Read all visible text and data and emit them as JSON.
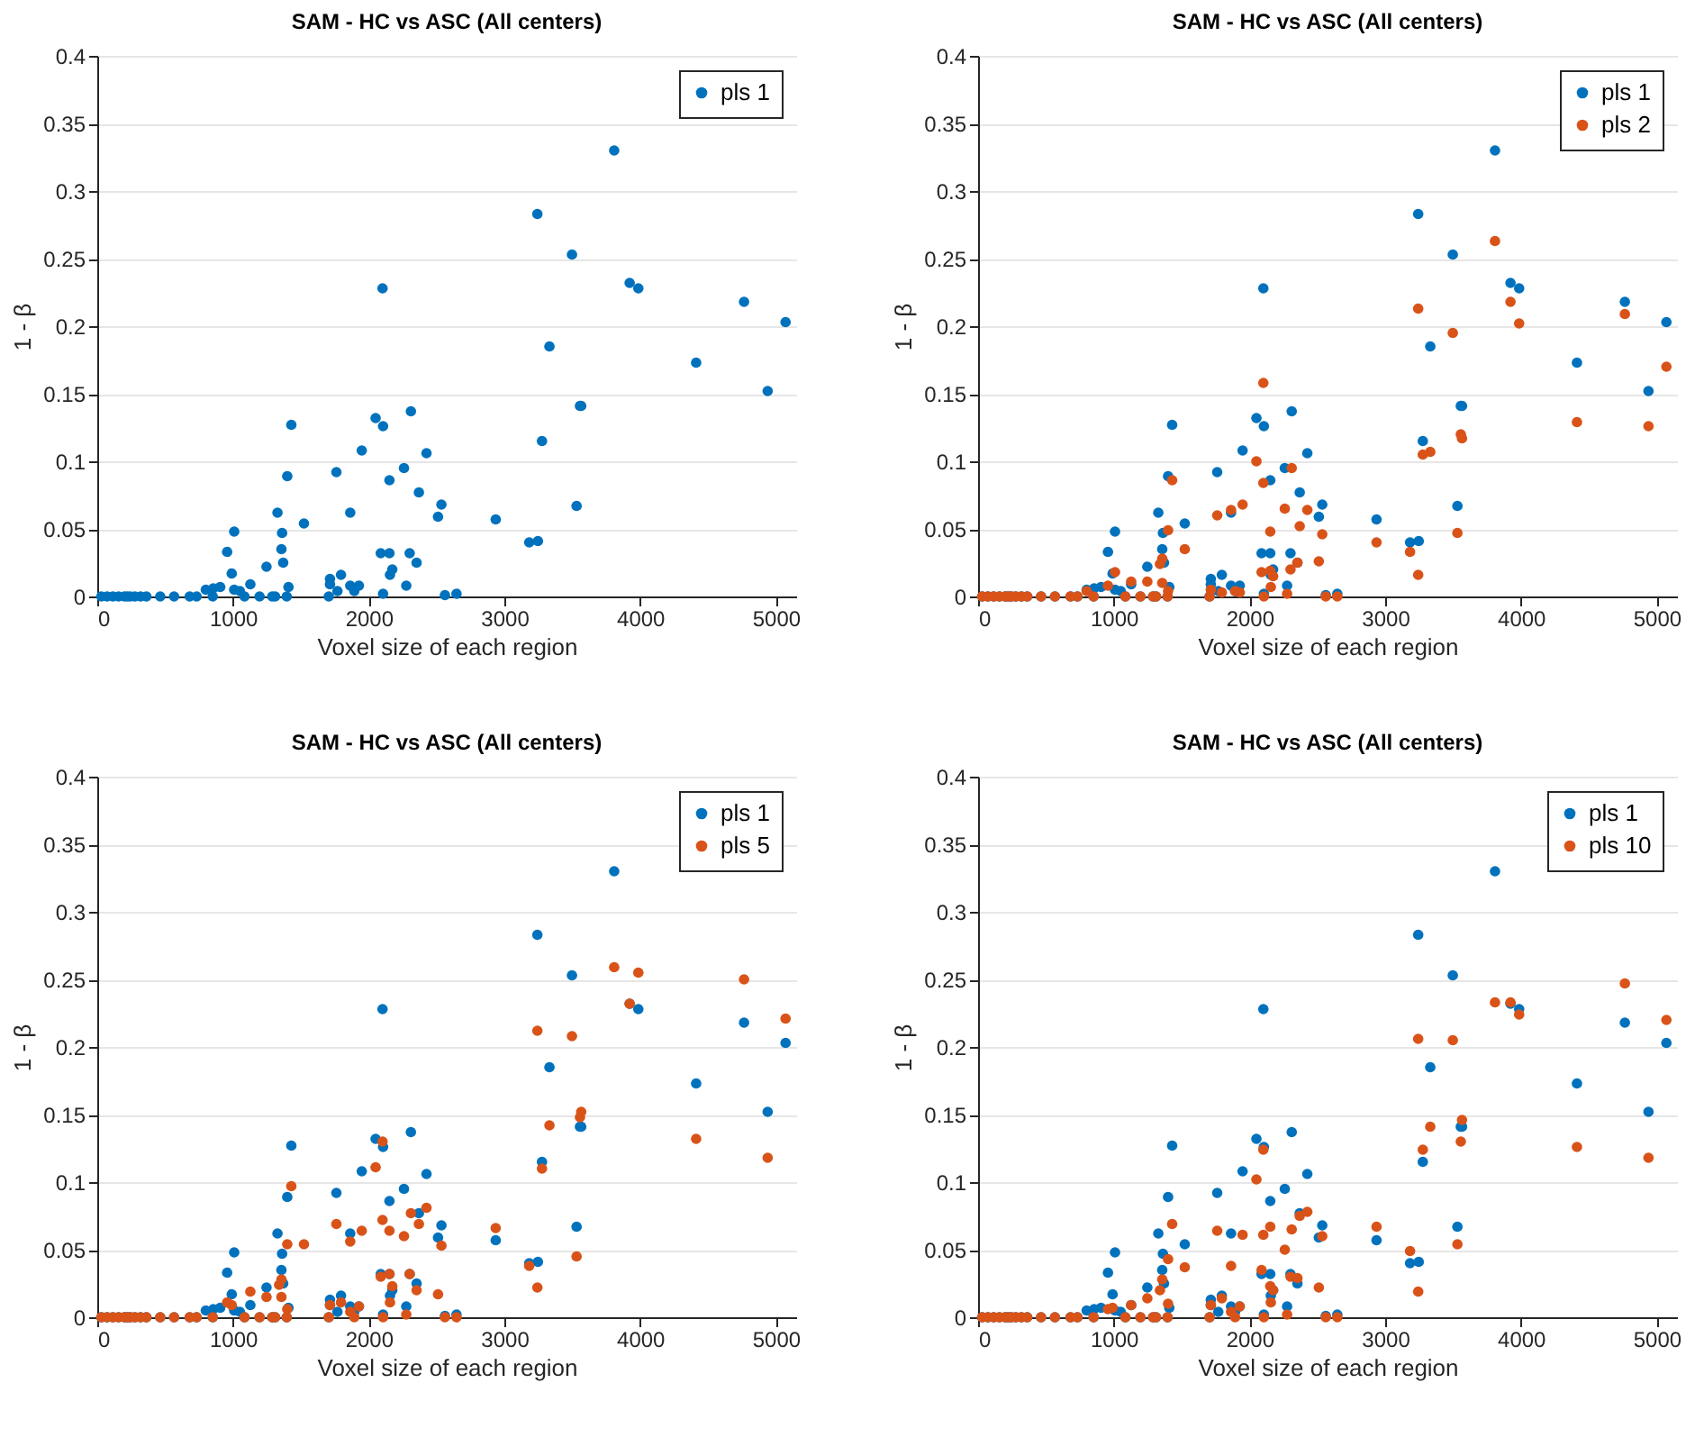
{
  "chart_data": [
    {
      "type": "scatter",
      "title": "SAM - HC vs ASC (All centers)",
      "xlabel": "Voxel size of each region",
      "ylabel": "1 - β",
      "xlim": [
        0,
        5150
      ],
      "ylim": [
        0,
        0.4
      ],
      "xticks": [
        0,
        1000,
        2000,
        3000,
        4000,
        5000
      ],
      "yticks": [
        0,
        0.05,
        0.1,
        0.15,
        0.2,
        0.25,
        0.3,
        0.35,
        0.4
      ],
      "grid": "y",
      "legend": "top right",
      "marker": "circle",
      "series": [
        {
          "name": "pls 1",
          "color": "#0072bd",
          "x": [
            3809,
            3243,
            3498,
            3923,
            3987,
            2102,
            4766,
            5072,
            3332,
            4413,
            4940,
            3557,
            3566,
            1430,
            2311,
            2051,
            2106,
            1949,
            2426,
            3277,
            1400,
            1762,
            2260,
            2153,
            2370,
            1328,
            1864,
            2536,
            2511,
            3532,
            2936,
            1009,
            1523,
            1362,
            3183,
            3247,
            957,
            1357,
            1370,
            1247,
            2089,
            2153,
            2302,
            2353,
            2174,
            2157,
            991,
            1796,
            1715,
            1715,
            1864,
            1928,
            1894,
            2277,
            1770,
            1409,
            1128,
            906,
            855,
            800,
            1009,
            1051,
            2106,
            2562,
            2647,
            30,
            72,
            115,
            157,
            200,
            221,
            243,
            277,
            319,
            362,
            464,
            566,
            681,
            732,
            851,
            1085,
            1196,
            1289,
            1311,
            1396,
            1706
          ],
          "values": [
            0.33,
            0.283,
            0.253,
            0.232,
            0.228,
            0.228,
            0.218,
            0.203,
            0.185,
            0.173,
            0.152,
            0.141,
            0.141,
            0.127,
            0.137,
            0.132,
            0.126,
            0.108,
            0.106,
            0.115,
            0.089,
            0.092,
            0.095,
            0.086,
            0.077,
            0.062,
            0.062,
            0.068,
            0.059,
            0.067,
            0.057,
            0.048,
            0.054,
            0.047,
            0.04,
            0.041,
            0.033,
            0.035,
            0.025,
            0.022,
            0.032,
            0.032,
            0.032,
            0.025,
            0.02,
            0.016,
            0.017,
            0.016,
            0.013,
            0.009,
            0.008,
            0.008,
            0.004,
            0.008,
            0.004,
            0.007,
            0.009,
            0.007,
            0.006,
            0.005,
            0.005,
            0.004,
            0.002,
            0.001,
            0.002,
            0,
            0,
            0,
            0,
            0,
            0,
            0,
            0,
            0,
            0,
            0,
            0,
            0,
            0,
            0,
            0,
            0,
            0,
            0,
            0,
            0
          ]
        }
      ]
    },
    {
      "type": "scatter",
      "title": "SAM - HC vs ASC (All centers)",
      "xlabel": "Voxel size of each region",
      "ylabel": "1 - β",
      "xlim": [
        0,
        5150
      ],
      "ylim": [
        0,
        0.4
      ],
      "xticks": [
        0,
        1000,
        2000,
        3000,
        4000,
        5000
      ],
      "yticks": [
        0,
        0.05,
        0.1,
        0.15,
        0.2,
        0.25,
        0.3,
        0.35,
        0.4
      ],
      "grid": "y",
      "legend": "top right",
      "marker": "circle",
      "series": [
        {
          "name": "pls 1",
          "color": "#0072bd",
          "x": [
            3809,
            3243,
            3498,
            3923,
            3987,
            2102,
            4766,
            5072,
            3332,
            4413,
            4940,
            3557,
            3566,
            1430,
            2311,
            2051,
            2106,
            1949,
            2426,
            3277,
            1400,
            1762,
            2260,
            2153,
            2370,
            1328,
            1864,
            2536,
            2511,
            3532,
            2936,
            1009,
            1523,
            1362,
            3183,
            3247,
            957,
            1357,
            1370,
            1247,
            2089,
            2153,
            2302,
            2353,
            2174,
            2157,
            991,
            1796,
            1715,
            1715,
            1864,
            1928,
            1894,
            2277,
            1770,
            1409,
            1128,
            906,
            855,
            800,
            1009,
            1051,
            2106,
            2562,
            2647,
            30,
            72,
            115,
            157,
            200,
            221,
            243,
            277,
            319,
            362,
            464,
            566,
            681,
            732,
            851,
            1085,
            1196,
            1289,
            1311,
            1396,
            1706
          ],
          "values": [
            0.33,
            0.283,
            0.253,
            0.232,
            0.228,
            0.228,
            0.218,
            0.203,
            0.185,
            0.173,
            0.152,
            0.141,
            0.141,
            0.127,
            0.137,
            0.132,
            0.126,
            0.108,
            0.106,
            0.115,
            0.089,
            0.092,
            0.095,
            0.086,
            0.077,
            0.062,
            0.062,
            0.068,
            0.059,
            0.067,
            0.057,
            0.048,
            0.054,
            0.047,
            0.04,
            0.041,
            0.033,
            0.035,
            0.025,
            0.022,
            0.032,
            0.032,
            0.032,
            0.025,
            0.02,
            0.016,
            0.017,
            0.016,
            0.013,
            0.009,
            0.008,
            0.008,
            0.004,
            0.008,
            0.004,
            0.007,
            0.009,
            0.007,
            0.006,
            0.005,
            0.005,
            0.004,
            0.002,
            0.001,
            0.002,
            0,
            0,
            0,
            0,
            0,
            0,
            0,
            0,
            0,
            0,
            0,
            0,
            0,
            0,
            0,
            0,
            0,
            0,
            0,
            0,
            0
          ]
        },
        {
          "name": "pls 2",
          "color": "#d95319",
          "x": [
            3809,
            3243,
            3498,
            3923,
            3987,
            4766,
            5072,
            4413,
            4940,
            2102,
            2051,
            2102,
            2311,
            1430,
            3277,
            3332,
            3557,
            3566,
            1762,
            1864,
            1949,
            2260,
            2426,
            2370,
            2153,
            2536,
            2511,
            3532,
            2936,
            3183,
            3243,
            1400,
            1523,
            1340,
            1357,
            1009,
            1128,
            1247,
            957,
            2089,
            2153,
            2174,
            2302,
            2353,
            2157,
            2277,
            1357,
            1400,
            1715,
            1796,
            1894,
            1928,
            800,
            30,
            72,
            115,
            157,
            200,
            221,
            243,
            277,
            319,
            362,
            464,
            566,
            681,
            732,
            851,
            1085,
            1196,
            1289,
            1311,
            1396,
            1706,
            2106,
            2562,
            2647
          ],
          "values": [
            0.263,
            0.213,
            0.195,
            0.218,
            0.202,
            0.209,
            0.17,
            0.129,
            0.126,
            0.158,
            0.1,
            0.084,
            0.095,
            0.086,
            0.105,
            0.107,
            0.12,
            0.117,
            0.06,
            0.064,
            0.068,
            0.065,
            0.064,
            0.052,
            0.048,
            0.046,
            0.026,
            0.047,
            0.04,
            0.033,
            0.016,
            0.049,
            0.035,
            0.024,
            0.028,
            0.018,
            0.011,
            0.011,
            0.008,
            0.018,
            0.019,
            0.015,
            0.02,
            0.025,
            0.007,
            0.002,
            0.01,
            0.004,
            0.005,
            0.003,
            0.004,
            0.003,
            0.004,
            0,
            0,
            0,
            0,
            0,
            0,
            0,
            0,
            0,
            0,
            0,
            0,
            0,
            0,
            0,
            0,
            0,
            0,
            0,
            0,
            0,
            0,
            0,
            0
          ]
        }
      ]
    },
    {
      "type": "scatter",
      "title": "SAM - HC vs ASC (All centers)",
      "xlabel": "Voxel size of each region",
      "ylabel": "1 - β",
      "xlim": [
        0,
        5150
      ],
      "ylim": [
        0,
        0.4
      ],
      "xticks": [
        0,
        1000,
        2000,
        3000,
        4000,
        5000
      ],
      "yticks": [
        0,
        0.05,
        0.1,
        0.15,
        0.2,
        0.25,
        0.3,
        0.35,
        0.4
      ],
      "grid": "y",
      "legend": "top right",
      "marker": "circle",
      "series": [
        {
          "name": "pls 1",
          "color": "#0072bd",
          "x": [
            3809,
            3243,
            3498,
            3923,
            3987,
            2102,
            4766,
            5072,
            3332,
            4413,
            4940,
            3557,
            3566,
            1430,
            2311,
            2051,
            2106,
            1949,
            2426,
            3277,
            1400,
            1762,
            2260,
            2153,
            2370,
            1328,
            1864,
            2536,
            2511,
            3532,
            2936,
            1009,
            1362,
            3183,
            3247,
            957,
            1357,
            1370,
            1247,
            2089,
            2153,
            2302,
            2353,
            2174,
            2157,
            991,
            1796,
            1715,
            1715,
            1864,
            1928,
            1894,
            2277,
            1770,
            1409,
            1128,
            906,
            855,
            800,
            1009,
            1051,
            2106,
            2562,
            2647,
            30,
            72,
            115,
            157,
            200,
            221,
            243,
            277,
            319,
            362,
            464,
            566,
            681,
            732,
            851,
            1085,
            1196,
            1289,
            1311,
            1396,
            1706
          ],
          "values": [
            0.33,
            0.283,
            0.253,
            0.232,
            0.228,
            0.228,
            0.218,
            0.203,
            0.185,
            0.173,
            0.152,
            0.141,
            0.141,
            0.127,
            0.137,
            0.132,
            0.126,
            0.108,
            0.106,
            0.115,
            0.089,
            0.092,
            0.095,
            0.086,
            0.077,
            0.062,
            0.062,
            0.068,
            0.059,
            0.067,
            0.057,
            0.048,
            0.047,
            0.04,
            0.041,
            0.033,
            0.035,
            0.025,
            0.022,
            0.032,
            0.032,
            0.032,
            0.025,
            0.02,
            0.016,
            0.017,
            0.016,
            0.013,
            0.009,
            0.008,
            0.008,
            0.004,
            0.008,
            0.004,
            0.007,
            0.009,
            0.007,
            0.006,
            0.005,
            0.005,
            0.004,
            0.002,
            0.001,
            0.002,
            0,
            0,
            0,
            0,
            0,
            0,
            0,
            0,
            0,
            0,
            0,
            0,
            0,
            0,
            0,
            0,
            0,
            0,
            0,
            0,
            0
          ]
        },
        {
          "name": "pls 5",
          "color": "#d95319",
          "x": [
            3809,
            3987,
            4766,
            3923,
            5072,
            3243,
            3498,
            3332,
            3566,
            3557,
            4413,
            4940,
            3277,
            2102,
            2051,
            1430,
            2311,
            2426,
            2102,
            2370,
            2153,
            2260,
            1762,
            1949,
            1864,
            1400,
            1523,
            2536,
            2936,
            3532,
            3183,
            3243,
            2511,
            2089,
            2153,
            2302,
            2353,
            2174,
            2157,
            1357,
            1340,
            1247,
            1357,
            1128,
            957,
            991,
            1715,
            1796,
            1928,
            1864,
            2277,
            1400,
            30,
            72,
            115,
            157,
            200,
            221,
            243,
            277,
            319,
            362,
            464,
            566,
            681,
            732,
            851,
            1085,
            1196,
            1289,
            1311,
            1396,
            1706,
            1894,
            2106,
            2562,
            2647
          ],
          "values": [
            0.259,
            0.255,
            0.25,
            0.232,
            0.221,
            0.212,
            0.208,
            0.142,
            0.152,
            0.148,
            0.132,
            0.118,
            0.11,
            0.13,
            0.111,
            0.097,
            0.077,
            0.081,
            0.072,
            0.069,
            0.064,
            0.06,
            0.069,
            0.064,
            0.056,
            0.054,
            0.054,
            0.053,
            0.066,
            0.045,
            0.038,
            0.022,
            0.017,
            0.03,
            0.032,
            0.032,
            0.02,
            0.023,
            0.011,
            0.028,
            0.024,
            0.015,
            0.015,
            0.019,
            0.011,
            0.009,
            0.009,
            0.011,
            0.008,
            0.004,
            0.002,
            0.006,
            0,
            0,
            0,
            0,
            0,
            0,
            0,
            0,
            0,
            0,
            0,
            0,
            0,
            0,
            0,
            0,
            0,
            0,
            0,
            0,
            0,
            0,
            0,
            0,
            0
          ]
        }
      ]
    },
    {
      "type": "scatter",
      "title": "SAM - HC vs ASC (All centers)",
      "xlabel": "Voxel size of each region",
      "ylabel": "1 - β",
      "xlim": [
        0,
        5150
      ],
      "ylim": [
        0,
        0.4
      ],
      "xticks": [
        0,
        1000,
        2000,
        3000,
        4000,
        5000
      ],
      "yticks": [
        0,
        0.05,
        0.1,
        0.15,
        0.2,
        0.25,
        0.3,
        0.35,
        0.4
      ],
      "grid": "y",
      "legend": "top right",
      "marker": "circle",
      "series": [
        {
          "name": "pls 1",
          "color": "#0072bd",
          "x": [
            3809,
            3243,
            3498,
            3923,
            3987,
            2102,
            4766,
            5072,
            3332,
            4413,
            4940,
            3557,
            3566,
            1430,
            2311,
            2051,
            2106,
            1949,
            2426,
            3277,
            1400,
            1762,
            2260,
            2153,
            2370,
            1328,
            1864,
            2536,
            2511,
            3532,
            2936,
            1009,
            1523,
            1362,
            3183,
            3247,
            957,
            1357,
            1370,
            1247,
            2089,
            2153,
            2302,
            2353,
            2174,
            2157,
            991,
            1796,
            1715,
            1715,
            1864,
            1928,
            1894,
            2277,
            1770,
            1409,
            1128,
            906,
            855,
            800,
            1009,
            1051,
            2106,
            2562,
            2647,
            30,
            72,
            115,
            157,
            200,
            221,
            243,
            277,
            319,
            362,
            464,
            566,
            681,
            732,
            851,
            1085,
            1196,
            1289,
            1311,
            1396,
            1706
          ],
          "values": [
            0.33,
            0.283,
            0.253,
            0.232,
            0.228,
            0.228,
            0.218,
            0.203,
            0.185,
            0.173,
            0.152,
            0.141,
            0.141,
            0.127,
            0.137,
            0.132,
            0.126,
            0.108,
            0.106,
            0.115,
            0.089,
            0.092,
            0.095,
            0.086,
            0.077,
            0.062,
            0.062,
            0.068,
            0.059,
            0.067,
            0.057,
            0.048,
            0.054,
            0.047,
            0.04,
            0.041,
            0.033,
            0.035,
            0.025,
            0.022,
            0.032,
            0.032,
            0.032,
            0.025,
            0.02,
            0.016,
            0.017,
            0.016,
            0.013,
            0.009,
            0.008,
            0.008,
            0.004,
            0.008,
            0.004,
            0.007,
            0.009,
            0.007,
            0.006,
            0.005,
            0.005,
            0.004,
            0.002,
            0.001,
            0.002,
            0,
            0,
            0,
            0,
            0,
            0,
            0,
            0,
            0,
            0,
            0,
            0,
            0,
            0,
            0,
            0,
            0,
            0,
            0,
            0,
            0
          ]
        },
        {
          "name": "pls 10",
          "color": "#d95319",
          "x": [
            3809,
            3923,
            3987,
            4766,
            5072,
            3243,
            3498,
            3332,
            3566,
            3557,
            3277,
            4413,
            4940,
            2102,
            2051,
            2426,
            2370,
            1430,
            1762,
            1949,
            2102,
            2153,
            2311,
            2536,
            2260,
            1400,
            1523,
            1864,
            2936,
            3183,
            3532,
            3243,
            2511,
            2089,
            2302,
            2353,
            2153,
            2174,
            2157,
            1357,
            1340,
            1247,
            1128,
            991,
            957,
            1400,
            1796,
            1715,
            1928,
            1864,
            2277,
            30,
            72,
            115,
            157,
            200,
            221,
            243,
            277,
            319,
            362,
            464,
            566,
            681,
            732,
            851,
            1085,
            1196,
            1289,
            1311,
            1396,
            1706,
            1894,
            2106,
            2562,
            2647
          ],
          "values": [
            0.233,
            0.233,
            0.224,
            0.247,
            0.22,
            0.206,
            0.205,
            0.141,
            0.146,
            0.13,
            0.124,
            0.126,
            0.118,
            0.124,
            0.102,
            0.078,
            0.075,
            0.069,
            0.064,
            0.061,
            0.061,
            0.067,
            0.065,
            0.06,
            0.05,
            0.043,
            0.037,
            0.038,
            0.067,
            0.049,
            0.054,
            0.019,
            0.022,
            0.035,
            0.03,
            0.029,
            0.023,
            0.02,
            0.011,
            0.028,
            0.02,
            0.014,
            0.009,
            0.007,
            0.006,
            0.01,
            0.014,
            0.009,
            0.008,
            0.004,
            0.002,
            0,
            0,
            0,
            0,
            0,
            0,
            0,
            0,
            0,
            0,
            0,
            0,
            0,
            0,
            0,
            0,
            0,
            0,
            0,
            0,
            0,
            0,
            0,
            0,
            0
          ]
        }
      ]
    }
  ]
}
